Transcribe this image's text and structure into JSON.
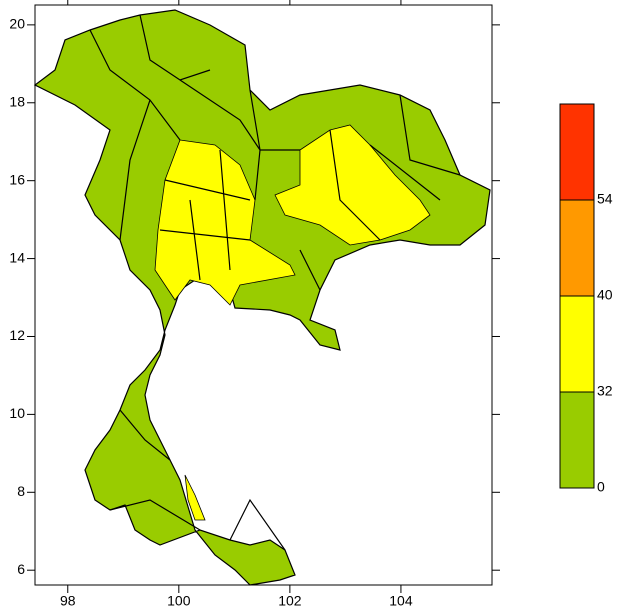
{
  "map": {
    "xlim": [
      97.41,
      105.64
    ],
    "ylim": [
      5.62,
      20.51
    ],
    "xticks": [
      98,
      100,
      102,
      104
    ],
    "yticks": [
      6,
      8,
      10,
      12,
      14,
      16,
      18,
      20
    ],
    "colorbar": {
      "levels": [
        0,
        32,
        40,
        54
      ],
      "colors": [
        "#99cc00",
        "#ffff00",
        "#ff9900",
        "#ff3300"
      ]
    }
  }
}
